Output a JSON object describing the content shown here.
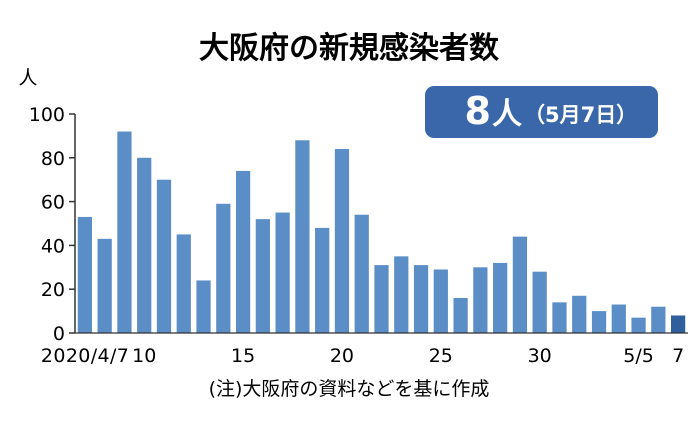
{
  "chart_data": {
    "type": "bar",
    "title": "大阪府の新規感染者数",
    "ylabel": "人",
    "ylim": [
      0,
      100
    ],
    "yticks": [
      0,
      20,
      40,
      60,
      80,
      100
    ],
    "categories": [
      "2020/4/7",
      "4/8",
      "4/9",
      "4/10",
      "4/11",
      "4/12",
      "4/13",
      "4/14",
      "4/15",
      "4/16",
      "4/17",
      "4/18",
      "4/19",
      "4/20",
      "4/21",
      "4/22",
      "4/23",
      "4/24",
      "4/25",
      "4/26",
      "4/27",
      "4/28",
      "4/29",
      "4/30",
      "5/1",
      "5/2",
      "5/3",
      "5/4",
      "5/5",
      "5/6",
      "5/7"
    ],
    "values": [
      53,
      43,
      92,
      80,
      70,
      45,
      24,
      59,
      74,
      52,
      55,
      88,
      48,
      84,
      54,
      31,
      35,
      31,
      29,
      16,
      30,
      32,
      44,
      28,
      14,
      17,
      10,
      13,
      7,
      12,
      8
    ],
    "xtick_labels": [
      {
        "index": 0,
        "text": "2020/4/7"
      },
      {
        "index": 3,
        "text": "10"
      },
      {
        "index": 8,
        "text": "15"
      },
      {
        "index": 13,
        "text": "20"
      },
      {
        "index": 18,
        "text": "25"
      },
      {
        "index": 23,
        "text": "30"
      },
      {
        "index": 28,
        "text": "5/5"
      },
      {
        "index": 30,
        "text": "7"
      }
    ],
    "callout": {
      "value": "8",
      "unit": "人",
      "date": "（5月7日）"
    },
    "note": "(注)大阪府の資料などを基に作成",
    "colors": {
      "bar": "#5b8ec6",
      "bar_highlight": "#2f5f9c",
      "callout_bg": "#3a67aa",
      "callout_text": "#ffffff"
    }
  }
}
